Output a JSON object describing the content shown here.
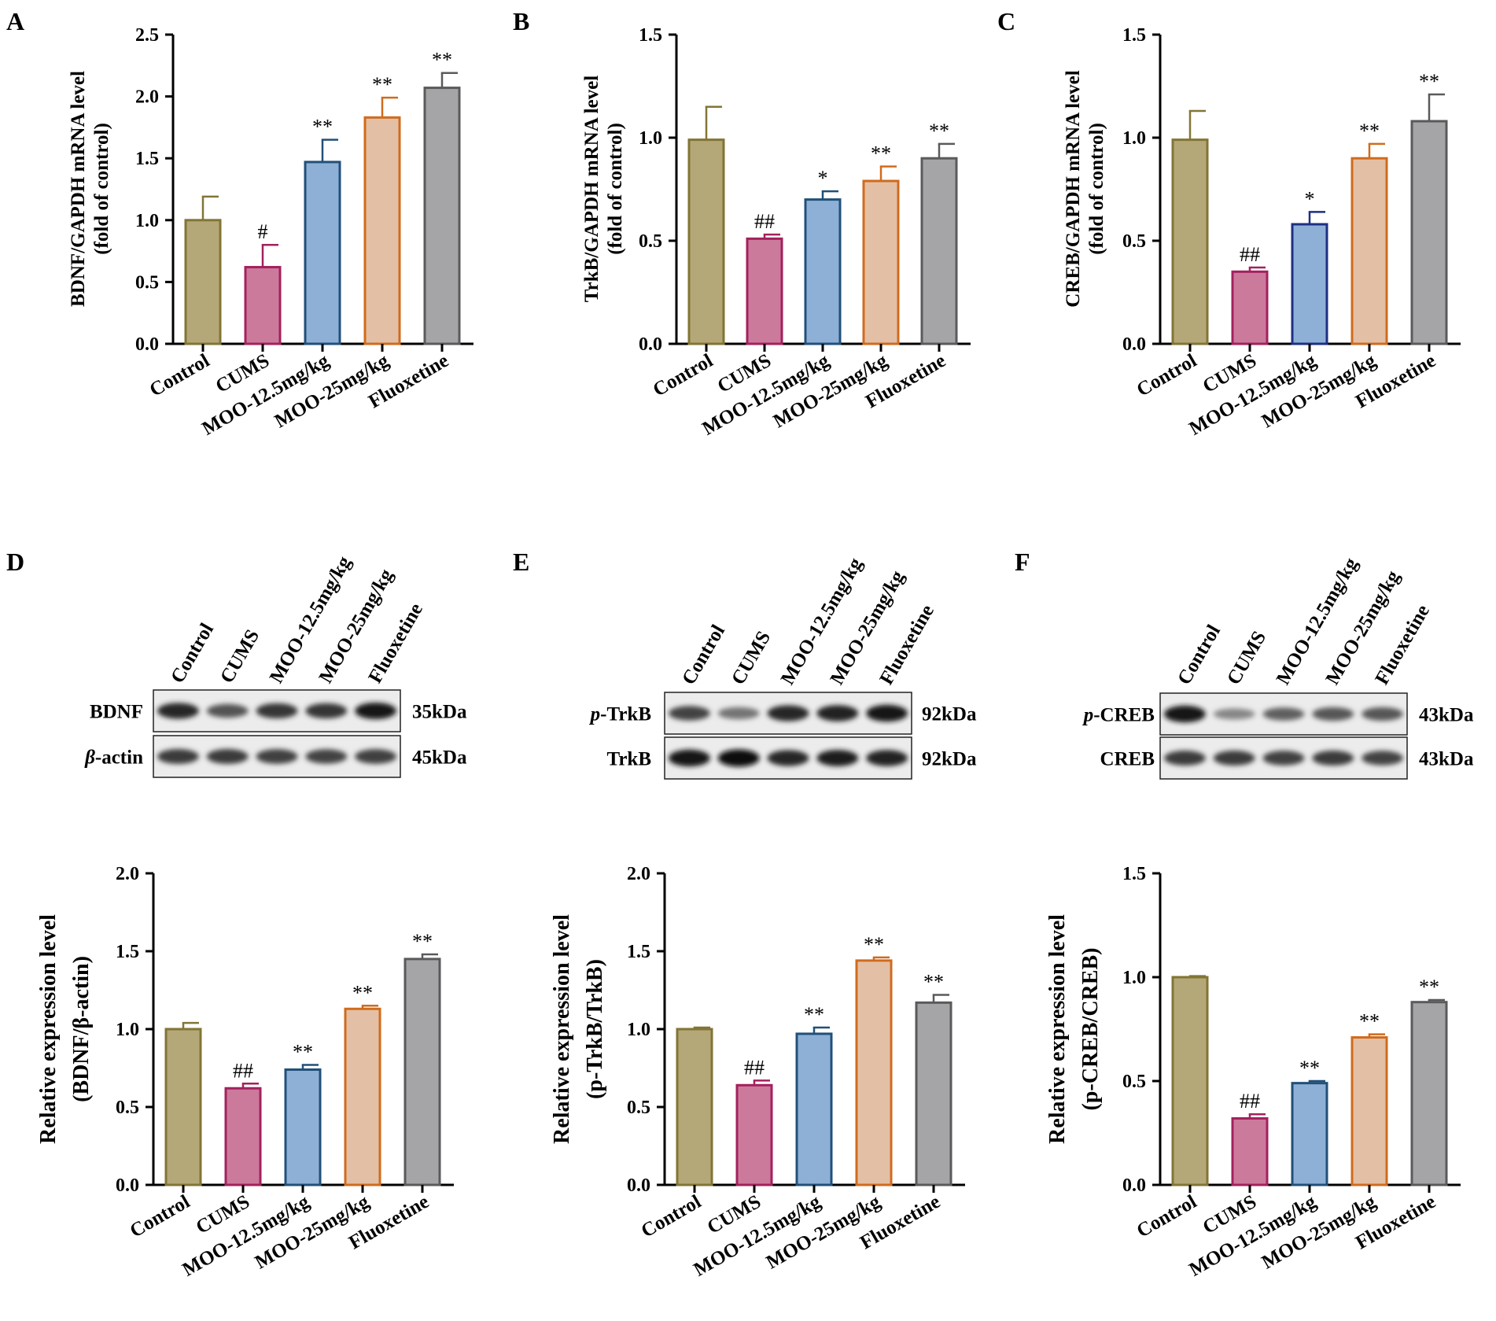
{
  "colors": {
    "Control": {
      "fill": "#b5a878",
      "stroke": "#827535"
    },
    "CUMS": {
      "fill": "#cc7a9c",
      "stroke": "#a3215e"
    },
    "MOO-12.5mg/kg": {
      "fill": "#8eb0d6",
      "stroke": "#215079"
    },
    "MOO-25mg/kg": {
      "fill": "#e3c0a5",
      "stroke": "#d06b1e"
    },
    "Fluoxetine": {
      "fill": "#a5a5a8",
      "stroke": "#5a5a5c"
    },
    "C_MOO-12.5mg/kg": {
      "fill": "#8eb0d6",
      "stroke": "#1e2f85"
    }
  },
  "chart_data": [
    {
      "panel": "A",
      "type": "bar",
      "categories": [
        "Control",
        "CUMS",
        "MOO-12.5mg/kg",
        "MOO-25mg/kg",
        "Fluoxetine"
      ],
      "values": [
        1.0,
        0.62,
        1.47,
        1.83,
        2.07
      ],
      "errors": [
        0.19,
        0.18,
        0.18,
        0.16,
        0.12
      ],
      "annotations": [
        "",
        "#",
        "**",
        "**",
        "**"
      ],
      "ylabel": [
        "BDNF/GAPDH mRNA level",
        "(fold of control)"
      ],
      "ylim": [
        0,
        2.5
      ],
      "yticks": [
        0.0,
        0.5,
        1.0,
        1.5,
        2.0,
        2.5
      ],
      "ytick_labels": [
        "0.0",
        "0.5",
        "1.0",
        "1.5",
        "2.0",
        "2.5"
      ]
    },
    {
      "panel": "B",
      "type": "bar",
      "categories": [
        "Control",
        "CUMS",
        "MOO-12.5mg/kg",
        "MOO-25mg/kg",
        "Fluoxetine"
      ],
      "values": [
        0.99,
        0.51,
        0.7,
        0.79,
        0.9
      ],
      "errors": [
        0.16,
        0.02,
        0.04,
        0.07,
        0.07
      ],
      "annotations": [
        "",
        "##",
        "*",
        "**",
        "**"
      ],
      "ylabel": [
        "TrkB/GAPDH mRNA level",
        "(fold of control)"
      ],
      "ylim": [
        0,
        1.5
      ],
      "yticks": [
        0.0,
        0.5,
        1.0,
        1.5
      ],
      "ytick_labels": [
        "0.0",
        "0.5",
        "1.0",
        "1.5"
      ]
    },
    {
      "panel": "C",
      "type": "bar",
      "categories": [
        "Control",
        "CUMS",
        "MOO-12.5mg/kg",
        "MOO-25mg/kg",
        "Fluoxetine"
      ],
      "values": [
        0.99,
        0.35,
        0.58,
        0.9,
        1.08
      ],
      "errors": [
        0.14,
        0.02,
        0.06,
        0.07,
        0.13
      ],
      "annotations": [
        "",
        "##",
        "*",
        "**",
        "**"
      ],
      "ylabel": [
        "CREB/GAPDH mRNA level",
        "(fold of control)"
      ],
      "ylim": [
        0,
        1.5
      ],
      "yticks": [
        0.0,
        0.5,
        1.0,
        1.5
      ],
      "ytick_labels": [
        "0.0",
        "0.5",
        "1.0",
        "1.5"
      ]
    },
    {
      "panel": "D",
      "type": "bar",
      "categories": [
        "Control",
        "CUMS",
        "MOO-12.5mg/kg",
        "MOO-25mg/kg",
        "Fluoxetine"
      ],
      "values": [
        1.0,
        0.62,
        0.74,
        1.13,
        1.45
      ],
      "errors": [
        0.04,
        0.03,
        0.03,
        0.02,
        0.03
      ],
      "annotations": [
        "",
        "##",
        "**",
        "**",
        "**"
      ],
      "ylabel": [
        "Relative expression level",
        "(BDNF/β-actin)"
      ],
      "ylim": [
        0,
        2.0
      ],
      "yticks": [
        0.0,
        0.5,
        1.0,
        1.5,
        2.0
      ],
      "ytick_labels": [
        "0.0",
        "0.5",
        "1.0",
        "1.5",
        "2.0"
      ]
    },
    {
      "panel": "E",
      "type": "bar",
      "categories": [
        "Control",
        "CUMS",
        "MOO-12.5mg/kg",
        "MOO-25mg/kg",
        "Fluoxetine"
      ],
      "values": [
        1.0,
        0.64,
        0.97,
        1.44,
        1.17
      ],
      "errors": [
        0.01,
        0.03,
        0.04,
        0.02,
        0.05
      ],
      "annotations": [
        "",
        "##",
        "**",
        "**",
        "**"
      ],
      "ylabel": [
        "Relative expression level",
        "(p-TrkB/TrkB)"
      ],
      "ylim": [
        0,
        2.0
      ],
      "yticks": [
        0.0,
        0.5,
        1.0,
        1.5,
        2.0
      ],
      "ytick_labels": [
        "0.0",
        "0.5",
        "1.0",
        "1.5",
        "2.0"
      ]
    },
    {
      "panel": "F",
      "type": "bar",
      "categories": [
        "Control",
        "CUMS",
        "MOO-12.5mg/kg",
        "MOO-25mg/kg",
        "Fluoxetine"
      ],
      "values": [
        1.0,
        0.32,
        0.49,
        0.71,
        0.88
      ],
      "errors": [
        0.005,
        0.02,
        0.01,
        0.015,
        0.01
      ],
      "annotations": [
        "",
        "##",
        "**",
        "**",
        "**"
      ],
      "ylabel": [
        "Relative expression level",
        "(p-CREB/CREB)"
      ],
      "ylim": [
        0,
        1.5
      ],
      "yticks": [
        0.0,
        0.5,
        1.0,
        1.5
      ],
      "ytick_labels": [
        "0.0",
        "0.5",
        "1.0",
        "1.5"
      ]
    }
  ],
  "blots": [
    {
      "panel": "D",
      "lanes": [
        "Control",
        "CUMS",
        "MOO-12.5mg/kg",
        "MOO-25mg/kg",
        "Fluoxetine"
      ],
      "rows": [
        {
          "label": "BDNF",
          "kda": "35kDa",
          "intensity": [
            0.85,
            0.62,
            0.78,
            0.78,
            0.92
          ]
        },
        {
          "label_prefix": "β",
          "label": "-actin",
          "kda": "45kDa",
          "intensity": [
            0.75,
            0.75,
            0.72,
            0.7,
            0.72
          ]
        }
      ]
    },
    {
      "panel": "E",
      "lanes": [
        "Control",
        "CUMS",
        "MOO-12.5mg/kg",
        "MOO-25mg/kg",
        "Fluoxetine"
      ],
      "rows": [
        {
          "label_prefix": "p",
          "label": "-TrkB",
          "kda": "92kDa",
          "intensity": [
            0.7,
            0.45,
            0.85,
            0.88,
            0.95
          ]
        },
        {
          "label": "TrkB",
          "kda": "92kDa",
          "intensity": [
            0.95,
            1.0,
            0.85,
            0.9,
            0.88
          ]
        }
      ]
    },
    {
      "panel": "F",
      "lanes": [
        "Control",
        "CUMS",
        "MOO-12.5mg/kg",
        "MOO-25mg/kg",
        "Fluoxetine"
      ],
      "rows": [
        {
          "label_prefix": "p",
          "label": "-CREB",
          "kda": "43kDa",
          "intensity": [
            0.95,
            0.35,
            0.55,
            0.6,
            0.6
          ]
        },
        {
          "label": "CREB",
          "kda": "43kDa",
          "intensity": [
            0.75,
            0.75,
            0.72,
            0.75,
            0.7
          ]
        }
      ]
    }
  ]
}
